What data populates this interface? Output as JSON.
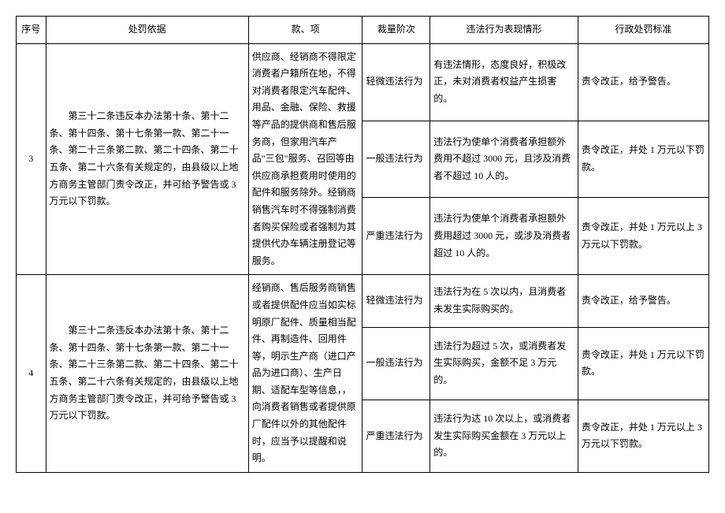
{
  "headers": {
    "seq": "序号",
    "basis": "处罚依据",
    "clause": "款、项",
    "level": "裁量阶次",
    "situation": "违法行为表现情形",
    "standard": "行政处罚标准"
  },
  "rows": [
    {
      "seq": "3",
      "basis": "　　第三十二条违反本办法第十条、第十二条、第十四条、第十七条第一款、第二十一条、第二十三条第二款、第二十四条、第二十五条、第二十六条有关规定的，由县级以上地方商务主管部门责令改正，并可给予警告或 3 万元以下罚款。",
      "clause": "供应商、经销商不得限定消费者户籍所在地，不得对消费者限定汽车配件、用品、金融、保险、救援等产品的提供商和售后服务商，但家用汽车产品\"三包\"服务、召回等由供应商承担费用时使用的配件和服务除外。经销商销售汽车时不得强制消费者购买保险或者强制为其提供代办车辆注册登记等服务。",
      "levels": [
        {
          "level": "轻微违法行为",
          "situation": "有违法情形，态度良好，积极改正，未对消费者权益产生损害的。",
          "standard": "责令改正，给予警告。"
        },
        {
          "level": "一般违法行为",
          "situation": "违法行为使单个消费者承担额外费用不超过 3000 元，且涉及消费者不超过 10 人的。",
          "standard": "责令改正，并处 1 万元以下罚款。"
        },
        {
          "level": "严重违法行为",
          "situation": "违法行为使单个消费者承担额外费用超过 3000 元，或涉及消费者超过 10 人的。",
          "standard": "责令改正，并处 1 万元以上 3 万元以下罚款。"
        }
      ]
    },
    {
      "seq": "4",
      "basis": "　　第三十二条违反本办法第十条、第十二条、第十四条、第十七条第一款、第二十一条、第二十三条第二款、第二十四条、第二十五条、第二十六条有关规定的，由县级以上地方商务主管部门责令改正，并可给予警告或 3 万元以下罚款。",
      "clause": "经销商、售后服务商销售或者提供配件应当如实标明原厂配件、质量相当配件、再制造件、回用件等，明示生产商（进口产品为进口商）、生产日期、适配车型等信息，，向消费者销售或者提供原厂配件以外的其他配件时，应当予以提醒和说明。",
      "levels": [
        {
          "level": "轻微违法行为",
          "situation": "违法行为在 5 次以内，且消费者未发生实际购买的。",
          "standard": "责令改正，给予警告。"
        },
        {
          "level": "一般违法行为",
          "situation": "违法行为超过 5 次，或消费者发生实际购买，金额不足 3 万元的。",
          "standard": "责令改正，并处 1 万元以下罚款。"
        },
        {
          "level": "严重违法行为",
          "situation": "违法行为达 10 次以上，或消费者发生实际购买金额在 3 万元以上的。",
          "standard": "责令改正，并处 1 万元以上 3 万元以下罚款。"
        }
      ]
    }
  ]
}
